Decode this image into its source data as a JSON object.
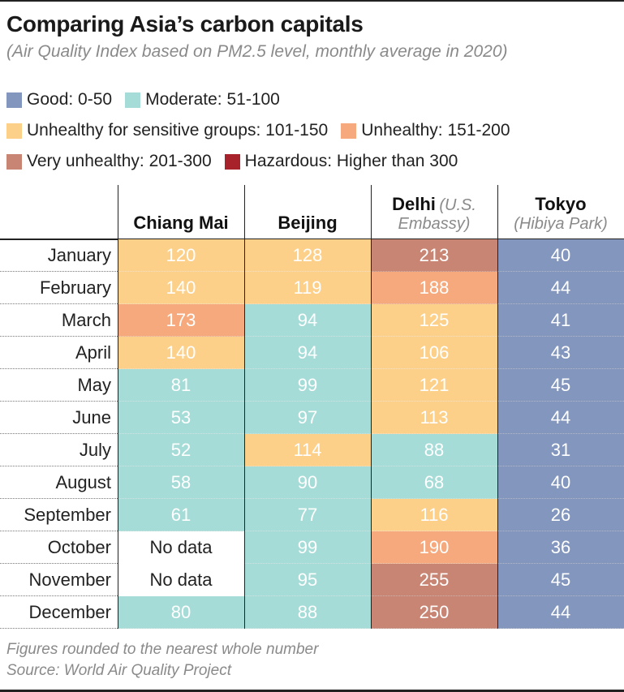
{
  "title": "Comparing Asia’s carbon capitals",
  "subtitle": "(Air Quality Index based on PM2.5 level, monthly average in 2020)",
  "legend": [
    {
      "label": "Good: 0-50",
      "color": "#8396bd"
    },
    {
      "label": "Moderate: 51-100",
      "color": "#a6dcd7"
    },
    {
      "label": "Unhealthy for sensitive groups: 101-150",
      "color": "#fdd08a"
    },
    {
      "label": "Unhealthy: 151-200",
      "color": "#f6a97c"
    },
    {
      "label": "Very unhealthy: 201-300",
      "color": "#c98574"
    },
    {
      "label": "Hazardous: Higher than 300",
      "color": "#a8222b"
    }
  ],
  "columns": [
    {
      "name": "Chiang Mai",
      "sub": ""
    },
    {
      "name": "Beijing",
      "sub": ""
    },
    {
      "name": "Delhi",
      "sub_inline": "(U.S.",
      "sub": "Embassy)"
    },
    {
      "name": "Tokyo",
      "sub": "(Hibiya Park)"
    }
  ],
  "no_data_text": "No data",
  "chart_data": {
    "type": "table",
    "title": "Comparing Asia’s carbon capitals",
    "subtitle": "(Air Quality Index based on PM2.5 level, monthly average in 2020)",
    "categories": [
      "January",
      "February",
      "March",
      "April",
      "May",
      "June",
      "July",
      "August",
      "September",
      "October",
      "November",
      "December"
    ],
    "series": [
      {
        "name": "Chiang Mai",
        "values": [
          120,
          140,
          173,
          140,
          81,
          53,
          52,
          58,
          61,
          null,
          null,
          80
        ]
      },
      {
        "name": "Beijing",
        "values": [
          128,
          119,
          94,
          94,
          99,
          97,
          114,
          90,
          77,
          99,
          95,
          88
        ]
      },
      {
        "name": "Delhi (U.S. Embassy)",
        "values": [
          213,
          188,
          125,
          106,
          121,
          113,
          88,
          68,
          116,
          190,
          255,
          250
        ]
      },
      {
        "name": "Tokyo (Hibiya Park)",
        "values": [
          40,
          44,
          41,
          43,
          45,
          44,
          31,
          40,
          26,
          36,
          45,
          44
        ]
      }
    ]
  },
  "footer": {
    "note": "Figures rounded to the nearest whole number",
    "source": "Source: World Air Quality Project"
  }
}
